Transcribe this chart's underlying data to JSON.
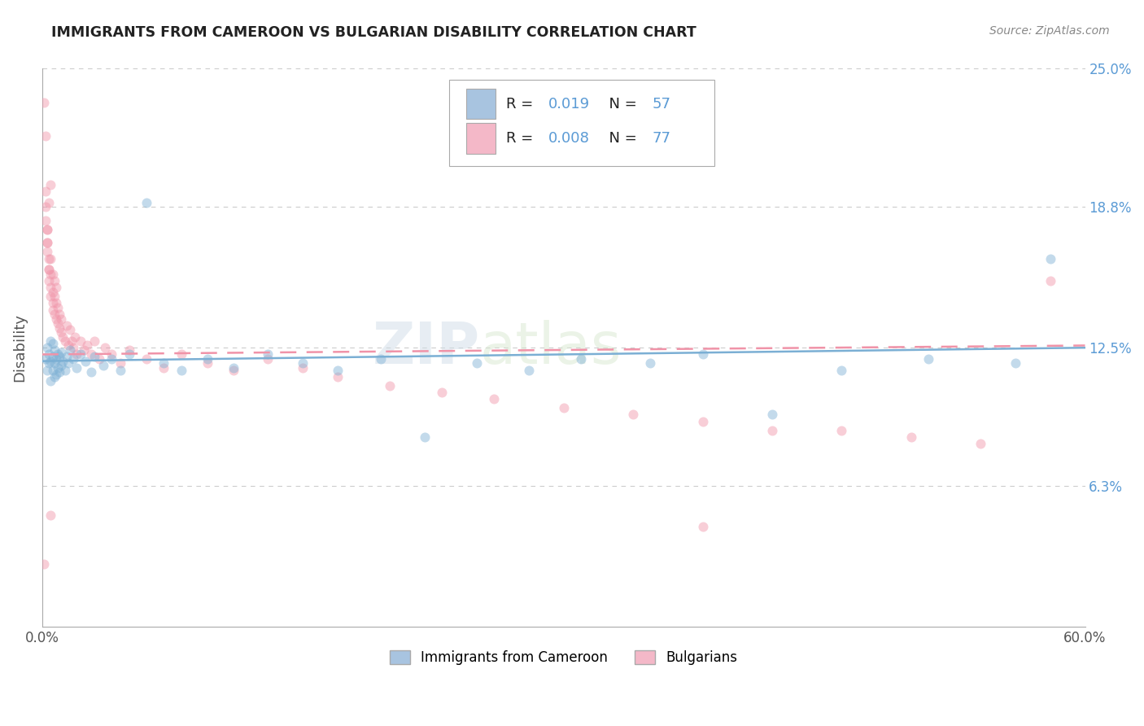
{
  "title": "IMMIGRANTS FROM CAMEROON VS BULGARIAN DISABILITY CORRELATION CHART",
  "source_text": "Source: ZipAtlas.com",
  "ylabel": "Disability",
  "xlim": [
    0.0,
    0.6
  ],
  "ylim": [
    0.0,
    0.25
  ],
  "xtick_vals": [
    0.0,
    0.6
  ],
  "xtick_labels": [
    "0.0%",
    "60.0%"
  ],
  "ytick_vals": [
    0.063,
    0.125,
    0.188,
    0.25
  ],
  "ytick_labels": [
    "6.3%",
    "12.5%",
    "18.8%",
    "25.0%"
  ],
  "legend_series1_color": "#a8c4e0",
  "legend_series2_color": "#f4b8c8",
  "series1_color": "#7bafd4",
  "series2_color": "#f093a8",
  "blue_scatter_x": [
    0.002,
    0.003,
    0.003,
    0.004,
    0.004,
    0.005,
    0.005,
    0.005,
    0.006,
    0.006,
    0.006,
    0.007,
    0.007,
    0.007,
    0.008,
    0.008,
    0.009,
    0.009,
    0.01,
    0.01,
    0.011,
    0.011,
    0.012,
    0.013,
    0.014,
    0.015,
    0.016,
    0.018,
    0.02,
    0.022,
    0.025,
    0.028,
    0.03,
    0.035,
    0.04,
    0.045,
    0.05,
    0.06,
    0.07,
    0.08,
    0.095,
    0.11,
    0.13,
    0.15,
    0.17,
    0.195,
    0.22,
    0.25,
    0.28,
    0.31,
    0.35,
    0.38,
    0.42,
    0.46,
    0.51,
    0.56,
    0.58
  ],
  "blue_scatter_y": [
    0.12,
    0.115,
    0.125,
    0.118,
    0.122,
    0.11,
    0.119,
    0.128,
    0.115,
    0.121,
    0.127,
    0.112,
    0.118,
    0.124,
    0.113,
    0.12,
    0.116,
    0.122,
    0.114,
    0.121,
    0.117,
    0.123,
    0.119,
    0.115,
    0.121,
    0.118,
    0.124,
    0.12,
    0.116,
    0.122,
    0.119,
    0.114,
    0.121,
    0.117,
    0.12,
    0.115,
    0.122,
    0.19,
    0.118,
    0.115,
    0.12,
    0.116,
    0.122,
    0.118,
    0.115,
    0.12,
    0.085,
    0.118,
    0.115,
    0.12,
    0.118,
    0.122,
    0.095,
    0.115,
    0.12,
    0.118,
    0.165
  ],
  "pink_scatter_x": [
    0.001,
    0.002,
    0.002,
    0.003,
    0.003,
    0.003,
    0.004,
    0.004,
    0.004,
    0.005,
    0.005,
    0.005,
    0.005,
    0.006,
    0.006,
    0.006,
    0.006,
    0.007,
    0.007,
    0.007,
    0.008,
    0.008,
    0.008,
    0.009,
    0.009,
    0.01,
    0.01,
    0.011,
    0.011,
    0.012,
    0.013,
    0.014,
    0.015,
    0.016,
    0.017,
    0.018,
    0.019,
    0.02,
    0.022,
    0.024,
    0.026,
    0.028,
    0.03,
    0.033,
    0.036,
    0.04,
    0.045,
    0.05,
    0.06,
    0.07,
    0.08,
    0.095,
    0.11,
    0.13,
    0.15,
    0.17,
    0.2,
    0.23,
    0.26,
    0.3,
    0.34,
    0.38,
    0.42,
    0.46,
    0.5,
    0.54,
    0.58,
    0.38,
    0.002,
    0.003,
    0.004,
    0.005,
    0.003,
    0.002,
    0.001,
    0.004,
    0.005
  ],
  "pink_scatter_y": [
    0.235,
    0.22,
    0.195,
    0.178,
    0.168,
    0.172,
    0.165,
    0.16,
    0.155,
    0.152,
    0.158,
    0.148,
    0.165,
    0.145,
    0.15,
    0.142,
    0.158,
    0.14,
    0.148,
    0.155,
    0.138,
    0.145,
    0.152,
    0.136,
    0.143,
    0.134,
    0.14,
    0.132,
    0.138,
    0.13,
    0.128,
    0.135,
    0.126,
    0.133,
    0.128,
    0.125,
    0.13,
    0.122,
    0.128,
    0.124,
    0.126,
    0.122,
    0.128,
    0.12,
    0.125,
    0.122,
    0.118,
    0.124,
    0.12,
    0.116,
    0.122,
    0.118,
    0.115,
    0.12,
    0.116,
    0.112,
    0.108,
    0.105,
    0.102,
    0.098,
    0.095,
    0.092,
    0.088,
    0.088,
    0.085,
    0.082,
    0.155,
    0.045,
    0.182,
    0.178,
    0.19,
    0.198,
    0.172,
    0.188,
    0.028,
    0.16,
    0.05
  ],
  "blue_line_x": [
    0.0,
    0.6
  ],
  "blue_line_y": [
    0.119,
    0.125
  ],
  "pink_line_x": [
    0.0,
    0.6
  ],
  "pink_line_y": [
    0.122,
    0.126
  ],
  "grid_color": "#cccccc",
  "background_color": "#ffffff",
  "title_color": "#222222",
  "axis_label_color": "#555555",
  "ytick_right_color": "#5b9bd5",
  "marker_size": 75,
  "marker_alpha": 0.45,
  "line_width": 1.8
}
